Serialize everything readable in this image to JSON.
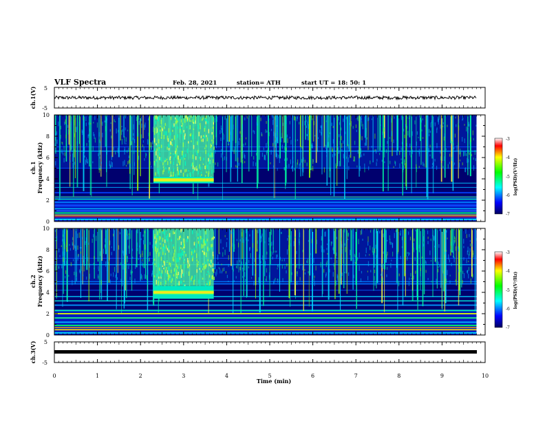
{
  "header": {
    "title": "VLF Spectra",
    "date": "Feb. 28, 2021",
    "station": "station= ATH",
    "start_ut": "start  UT =   18: 50: 1"
  },
  "chart_data": [
    {
      "type": "line",
      "id": "ch1-waveform",
      "ylabel": "ch.1(V)",
      "ylim": [
        -5,
        5
      ],
      "yticks": [
        "5",
        "-5"
      ],
      "xlim": [
        0,
        10
      ],
      "series": [
        {
          "values_description": "noisy signal near 0 V",
          "mean": 0
        }
      ]
    },
    {
      "type": "heatmap",
      "id": "ch1-spectrogram",
      "ylabel": [
        "ch.1",
        "Frequency (kHz)"
      ],
      "ylim": [
        0,
        10
      ],
      "yticks": [
        "0",
        "2",
        "4",
        "6",
        "8",
        "10"
      ],
      "xlim": [
        0,
        10
      ],
      "colorbar": {
        "label": "log(PSD)(V²/Hz)",
        "range": [
          -7,
          -3
        ],
        "ticks": [
          "-3",
          "-4",
          "-5",
          "-6",
          "-7"
        ]
      },
      "burst": {
        "t_start": 2.3,
        "t_end": 3.7,
        "f_band": [
          3.6,
          4.2
        ]
      }
    },
    {
      "type": "heatmap",
      "id": "ch2-spectrogram",
      "ylabel": [
        "ch.2",
        "Frequency (kHz)"
      ],
      "ylim": [
        0,
        10
      ],
      "yticks": [
        "0",
        "2",
        "4",
        "6",
        "8",
        "10"
      ],
      "xlim": [
        0,
        10
      ],
      "colorbar": {
        "label": "log(PSD)(V²/Hz)",
        "range": [
          -7,
          -3
        ],
        "ticks": [
          "-3",
          "-4",
          "-5",
          "-6",
          "-7"
        ]
      },
      "burst": {
        "t_start": 2.3,
        "t_end": 3.7,
        "f_band": [
          3.4,
          4.6
        ]
      }
    },
    {
      "type": "line",
      "id": "ch3-waveform",
      "ylabel": "ch.3(V)",
      "ylim": [
        -5,
        5
      ],
      "yticks": [
        "5",
        "-5"
      ],
      "xlim": [
        0,
        10
      ],
      "series": [
        {
          "values_description": "flat signal",
          "value": 0
        }
      ]
    }
  ],
  "xaxis": {
    "label": "Time  (min)",
    "ticks": [
      "0",
      "1",
      "2",
      "3",
      "4",
      "5",
      "6",
      "7",
      "8",
      "9",
      "10"
    ]
  },
  "colors": {
    "background": "#ffffff",
    "axes": "#000000",
    "spectrogram_low": "#00006e",
    "spectrogram_high": "#ff0000"
  }
}
